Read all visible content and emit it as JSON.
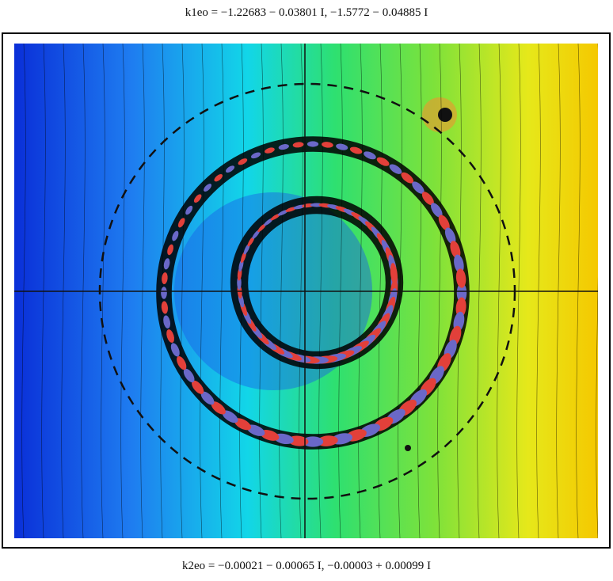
{
  "header": {
    "title": "k1eo = −1.22683 − 0.03801 I,  −1.5772 − 0.04885 I"
  },
  "footer": {
    "caption": "k2eo = −0.00021 − 0.00065 I,  −0.00003 + 0.00099 I"
  }
}
